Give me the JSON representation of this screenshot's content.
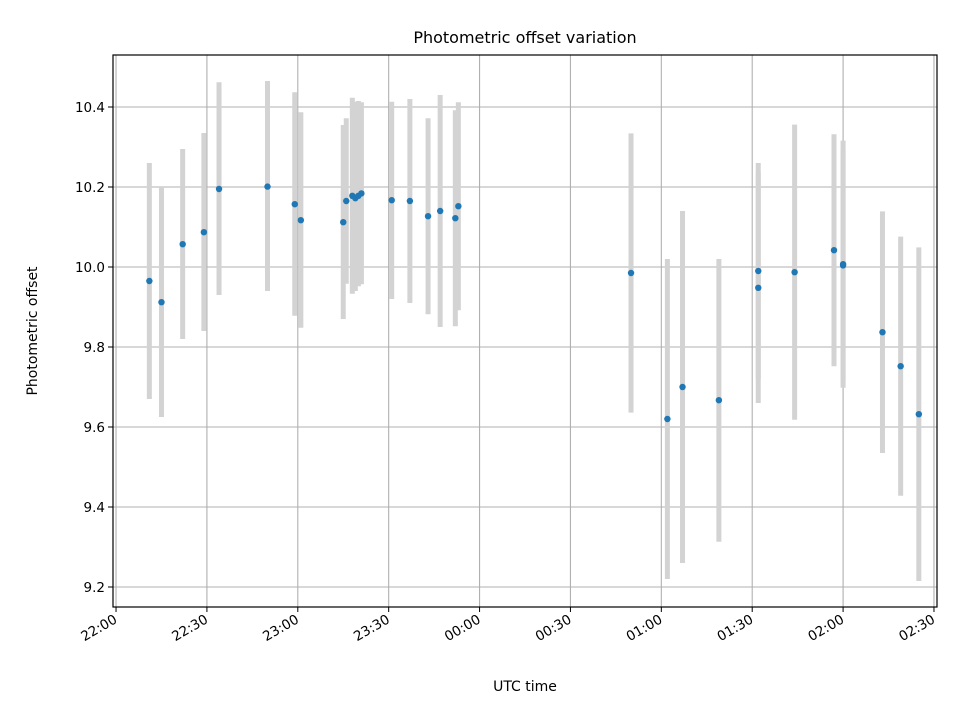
{
  "chart_data": {
    "type": "scatter",
    "title": "Photometric offset variation",
    "xlabel": "UTC time",
    "ylabel": "Photometric offset",
    "x_ticks": [
      "22:00",
      "22:30",
      "23:00",
      "23:30",
      "00:00",
      "00:30",
      "01:00",
      "01:30",
      "02:00",
      "02:30"
    ],
    "y_ticks": [
      "9.2",
      "9.4",
      "9.6",
      "9.8",
      "10.0",
      "10.2",
      "10.4"
    ],
    "x_range": [
      "21:59",
      "02:31"
    ],
    "ylim": [
      9.15,
      10.53
    ],
    "grid": true,
    "colors": {
      "points": "#1f77b4",
      "errorbars": "#d3d3d3",
      "grid": "#b0b0b0"
    },
    "points": [
      {
        "x": "22:11",
        "y": 9.965,
        "low": 9.67,
        "high": 10.26
      },
      {
        "x": "22:15",
        "y": 9.912,
        "low": 9.625,
        "high": 10.2
      },
      {
        "x": "22:22",
        "y": 10.057,
        "low": 9.82,
        "high": 10.295
      },
      {
        "x": "22:29",
        "y": 10.087,
        "low": 9.84,
        "high": 10.335
      },
      {
        "x": "22:34",
        "y": 10.195,
        "low": 9.93,
        "high": 10.462
      },
      {
        "x": "22:50",
        "y": 10.201,
        "low": 9.94,
        "high": 10.465
      },
      {
        "x": "22:59",
        "y": 10.157,
        "low": 9.878,
        "high": 10.437
      },
      {
        "x": "23:01",
        "y": 10.117,
        "low": 9.848,
        "high": 10.387
      },
      {
        "x": "23:15",
        "y": 10.112,
        "low": 9.87,
        "high": 10.355
      },
      {
        "x": "23:16",
        "y": 10.165,
        "low": 9.958,
        "high": 10.372
      },
      {
        "x": "23:18",
        "y": 10.178,
        "low": 9.933,
        "high": 10.423
      },
      {
        "x": "23:19",
        "y": 10.172,
        "low": 9.94,
        "high": 10.413
      },
      {
        "x": "23:20",
        "y": 10.178,
        "low": 9.952,
        "high": 10.415
      },
      {
        "x": "23:21",
        "y": 10.184,
        "low": 9.957,
        "high": 10.412
      },
      {
        "x": "23:31",
        "y": 10.167,
        "low": 9.92,
        "high": 10.413
      },
      {
        "x": "23:37",
        "y": 10.165,
        "low": 9.91,
        "high": 10.42
      },
      {
        "x": "23:43",
        "y": 10.127,
        "low": 9.882,
        "high": 10.372
      },
      {
        "x": "23:47",
        "y": 10.14,
        "low": 9.85,
        "high": 10.43
      },
      {
        "x": "23:52",
        "y": 10.122,
        "low": 9.852,
        "high": 10.392
      },
      {
        "x": "23:53",
        "y": 10.152,
        "low": 9.892,
        "high": 10.412
      },
      {
        "x": "00:50",
        "y": 9.985,
        "low": 9.636,
        "high": 10.334
      },
      {
        "x": "01:02",
        "y": 9.62,
        "low": 9.22,
        "high": 10.02
      },
      {
        "x": "01:07",
        "y": 9.7,
        "low": 9.26,
        "high": 10.14
      },
      {
        "x": "01:19",
        "y": 9.667,
        "low": 9.313,
        "high": 10.02
      },
      {
        "x": "01:32",
        "y": 9.99,
        "low": 9.72,
        "high": 10.26
      },
      {
        "x": "01:32",
        "y": 9.948,
        "low": 9.66,
        "high": 10.236
      },
      {
        "x": "01:44",
        "y": 9.987,
        "low": 9.618,
        "high": 10.356
      },
      {
        "x": "01:57",
        "y": 10.042,
        "low": 9.752,
        "high": 10.332
      },
      {
        "x": "02:00",
        "y": 10.007,
        "low": 9.698,
        "high": 10.316
      },
      {
        "x": "02:00",
        "y": 10.004,
        "low": 9.715,
        "high": 10.293
      },
      {
        "x": "02:13",
        "y": 9.837,
        "low": 9.535,
        "high": 10.139
      },
      {
        "x": "02:19",
        "y": 9.752,
        "low": 9.428,
        "high": 10.076
      },
      {
        "x": "02:25",
        "y": 9.632,
        "low": 9.215,
        "high": 10.049
      }
    ]
  }
}
